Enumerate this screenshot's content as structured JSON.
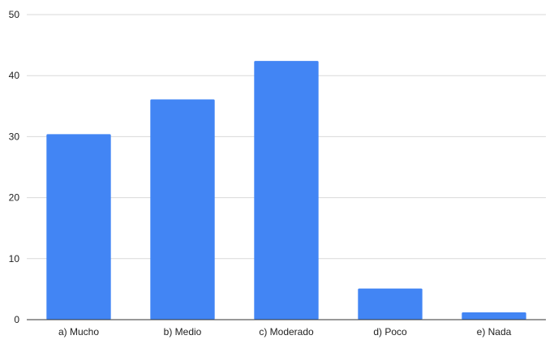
{
  "chart_data": {
    "type": "bar",
    "title": "",
    "xlabel": "",
    "ylabel": "",
    "categories": [
      "a) Mucho",
      "b) Medio",
      "c) Moderado",
      "d) Poco",
      "e) Nada"
    ],
    "values": [
      30.4,
      36.1,
      42.4,
      5.1,
      1.2
    ],
    "ylim": [
      0,
      50
    ],
    "yticks": [
      "0",
      "10",
      "20",
      "30",
      "40",
      "50"
    ],
    "grid": true,
    "legend": "none",
    "colors": {
      "bar": "#4285f4",
      "grid": "#d9d9d9",
      "axis": "#333333"
    }
  }
}
